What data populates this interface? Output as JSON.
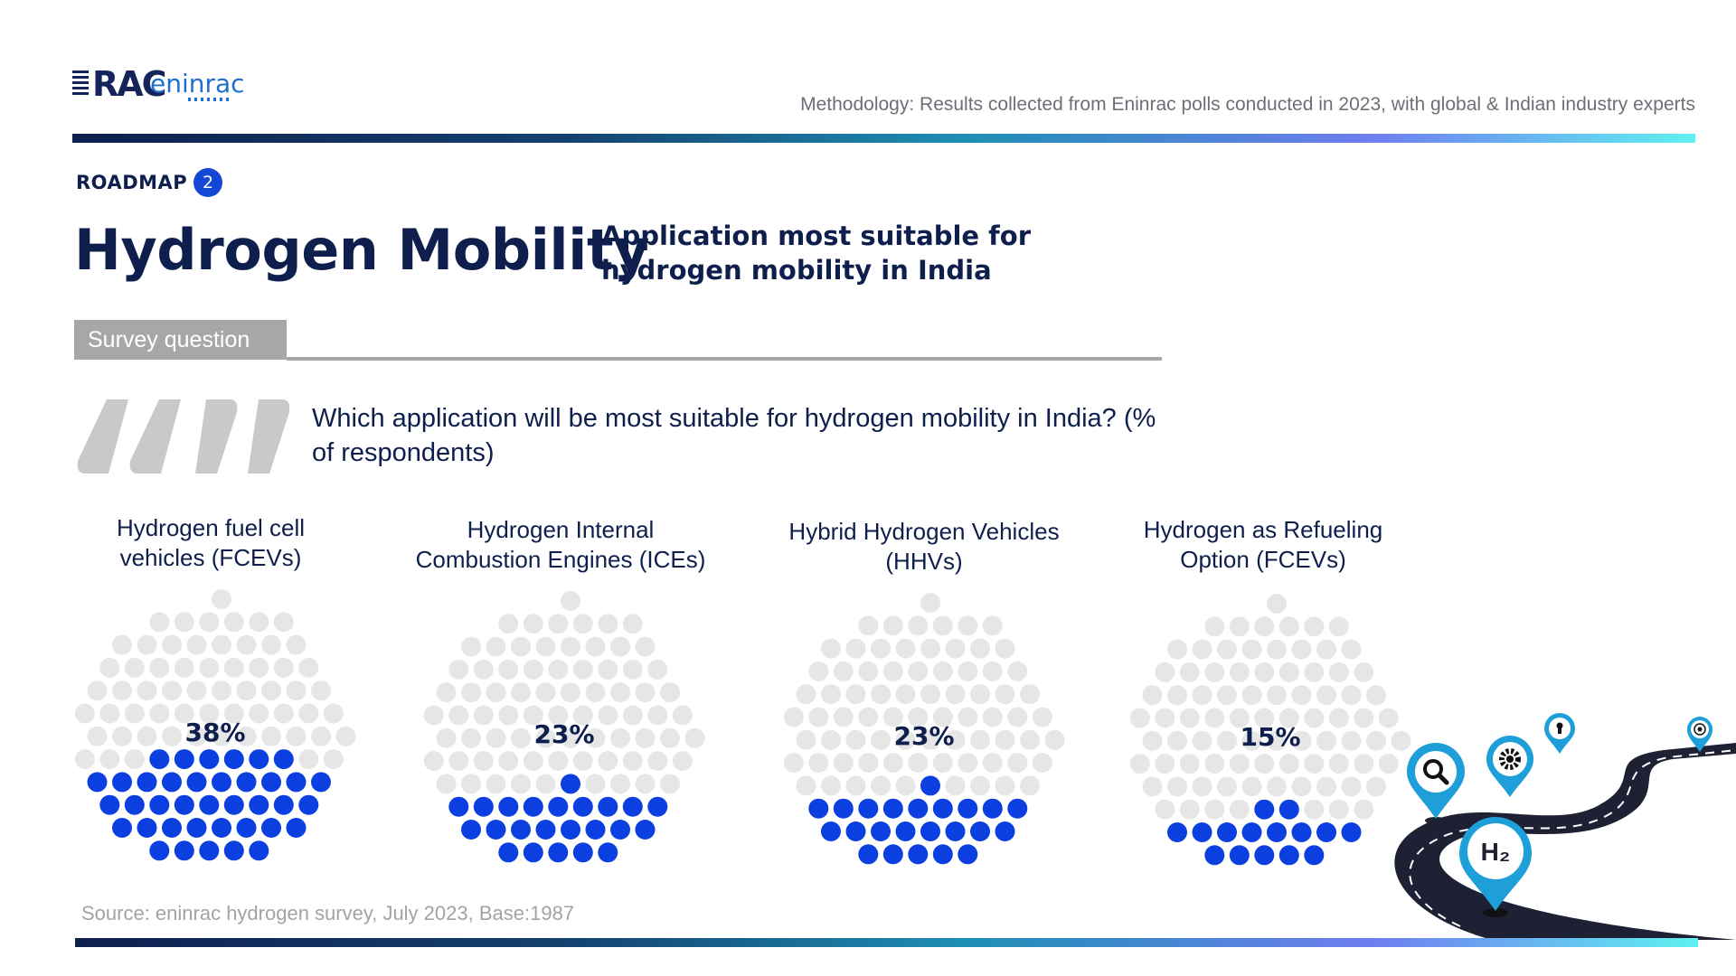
{
  "logo": {
    "brand": "RAC",
    "name": "eninrac"
  },
  "methodology": "Methodology: Results collected from Eninrac polls conducted in 2023, with global & Indian industry experts",
  "section": {
    "label": "ROADMAP",
    "number": "2"
  },
  "title": "Hydrogen Mobility",
  "subtitle": "Application most suitable for hydrogen mobility in India",
  "survey_label": "Survey question",
  "question": "Which application will be most suitable for hydrogen mobility in India? (% of respondents)",
  "source": "Source: eninrac hydrogen survey, July 2023, Base:1987",
  "colors": {
    "filled": "#0b3fe0",
    "empty": "#e6e6e6",
    "text": "#0f1f4d",
    "road": "#1e2033",
    "pin": "#1f9fd9"
  },
  "road_icons": [
    "search-icon",
    "gear-icon",
    "keyhole-icon",
    "target-icon",
    "h2-icon"
  ],
  "road_h2_label": "H₂",
  "chart_data": {
    "type": "dot-percentage",
    "title": "Which application will be most suitable for hydrogen mobility in India? (% of respondents)",
    "categories": [
      "Hydrogen fuel cell vehicles (FCEVs)",
      "Hydrogen Internal Combustion Engines (ICEs)",
      "Hybrid Hydrogen Vehicles (HHVs)",
      "Hydrogen as Refueling Option (FCEVs)"
    ],
    "category_lines": [
      [
        "Hydrogen fuel cell",
        "vehicles (FCEVs)"
      ],
      [
        "Hydrogen Internal",
        "Combustion Engines (ICEs)"
      ],
      [
        "Hybrid Hydrogen Vehicles",
        "(HHVs)"
      ],
      [
        "Hydrogen as Refueling",
        "Option (FCEVs)"
      ]
    ],
    "values": [
      38,
      23,
      23,
      15
    ],
    "labels": [
      "38%",
      "23%",
      "23%",
      "15%"
    ],
    "unit": "%"
  }
}
